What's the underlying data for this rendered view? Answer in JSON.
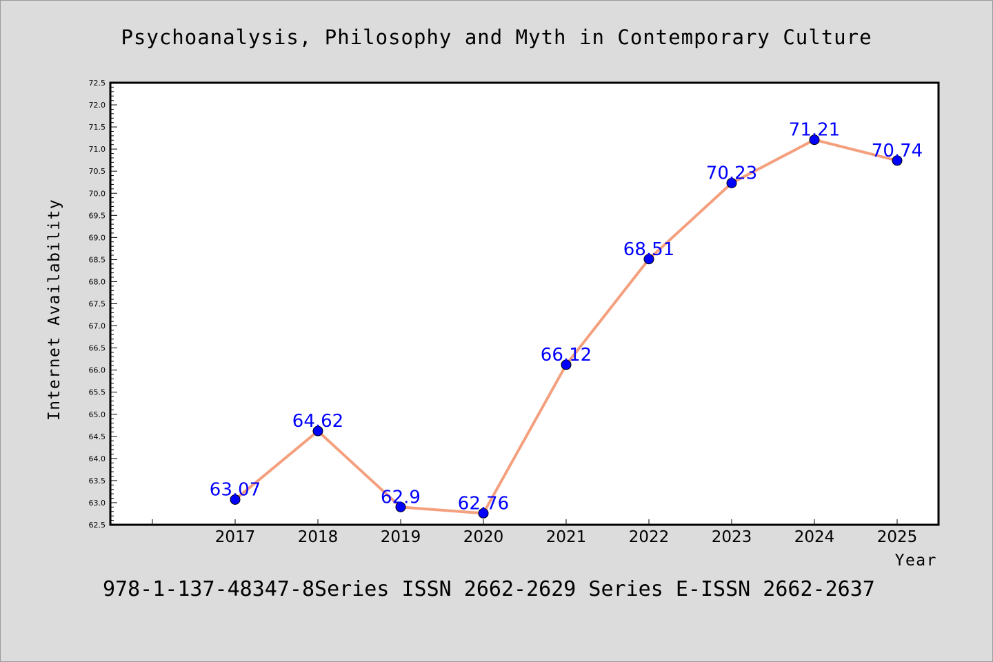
{
  "chart_data": {
    "type": "line",
    "title": "Psychoanalysis, Philosophy and Myth in Contemporary Culture",
    "xlabel": "Year",
    "ylabel": "Internet Availability",
    "categories": [
      "2017",
      "2018",
      "2019",
      "2020",
      "2021",
      "2022",
      "2023",
      "2024",
      "2025"
    ],
    "series": [
      {
        "values": [
          63.07,
          64.62,
          62.9,
          62.76,
          66.12,
          68.51,
          70.23,
          71.21,
          70.74
        ],
        "labels": [
          "63.07",
          "64.62",
          "62.9",
          "62.76",
          "66.12",
          "68.51",
          "70.23",
          "71.21",
          "70.74"
        ],
        "line_color": "#f4a07e",
        "marker_color": "#0000ff"
      }
    ],
    "ylim": [
      62.5,
      72.5
    ],
    "yticks": [
      "62.5",
      "63.0",
      "63.5",
      "64.0",
      "64.5",
      "65.0",
      "65.5",
      "66.0",
      "66.5",
      "67.0",
      "67.5",
      "68.0",
      "68.5",
      "69.0",
      "69.5",
      "70.0",
      "70.5",
      "71.0",
      "71.5",
      "72.0",
      "72.5"
    ],
    "grid": false,
    "legend": "none",
    "footer": "978-1-137-48347-8Series ISSN 2662-2629 Series E-ISSN 2662-2637"
  }
}
